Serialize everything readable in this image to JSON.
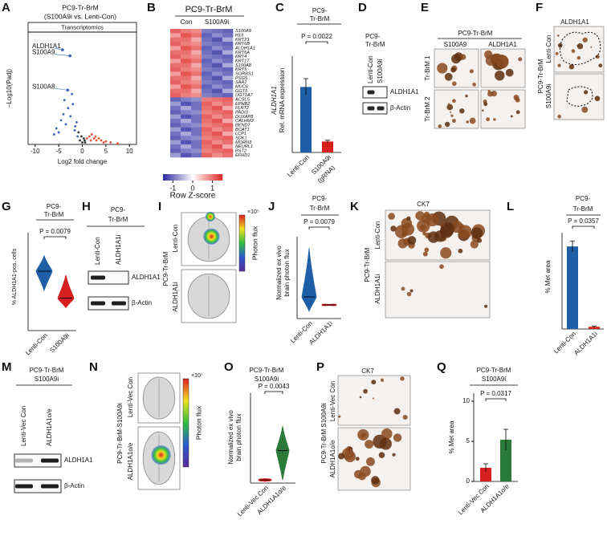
{
  "panels": {
    "A": {
      "letter": "A",
      "title": [
        "PC9-Tr-BrM",
        "(S100A9i vs. Lenti-Con)"
      ],
      "subtitle": "Transcriptomics",
      "ylabel": "–Log10(Padj)",
      "xlabel": "Log2 fold change",
      "xlim": [
        -11.5,
        11.5
      ],
      "xticks": [
        -10,
        -5,
        0,
        5,
        10
      ],
      "ylim": [
        0,
        55
      ],
      "points": {
        "x": [
          -6,
          -5.5,
          -5,
          -4.5,
          -4,
          -3.5,
          -3,
          -2.5,
          -2,
          -1.5,
          -1,
          -0.5,
          0,
          0.5,
          1,
          1.5,
          2,
          2.5,
          3,
          3.5,
          4,
          5,
          6,
          7.5,
          -3.8,
          -2.2,
          -1.2,
          0.3,
          -0.8,
          1.8,
          -0.2,
          0.6,
          -1.6,
          2.8,
          4.5
        ],
        "y": [
          5,
          8,
          6,
          12,
          15,
          10,
          18,
          14,
          20,
          9,
          4,
          2,
          1,
          2,
          3,
          4,
          5,
          3,
          2,
          3,
          2,
          1.5,
          1,
          0.5,
          22,
          25,
          11,
          3,
          6,
          2,
          4,
          1,
          7,
          4,
          1
        ]
      },
      "highlights": [
        {
          "label": "ALDH1A1",
          "x": -4.2,
          "y": 47
        },
        {
          "label": "S100A9",
          "x": -2.6,
          "y": 44
        },
        {
          "label": "S100A8",
          "x": -3.1,
          "y": 27
        }
      ],
      "colors": {
        "down": "#3a5fb0",
        "up": "#e2553a",
        "ns": "#333333",
        "label": "#2a6fb5"
      }
    },
    "B": {
      "letter": "B",
      "title": "PC9-Tr-BrM",
      "groups": [
        "Con",
        "S100A9i"
      ],
      "genes": [
        "S100A9",
        "H19",
        "KRT23",
        "KRT6B",
        "ALDH1A1",
        "KRT6A",
        "KRT4",
        "KRT17",
        "S100A8",
        "KRT5",
        "SORBS1",
        "PSG5",
        "SAA1",
        "MUC6",
        "GGT5",
        "UGT1A7",
        "ACSL5",
        "EPHB2",
        "FLRT2",
        "PADI3",
        "DUXAP8",
        "CALHM3",
        "BEND7",
        "BCAT1",
        "LCP1",
        "SDK1",
        "MORN3",
        "NEURL1",
        "BST2",
        "EFHD1"
      ],
      "highlight_gene": "ALDH1A1",
      "highlight_color": "#e02020",
      "matrix": [
        [
          1.1,
          0.9,
          0.8,
          -0.9,
          -1.0,
          -1.1
        ],
        [
          0.7,
          1.2,
          1.0,
          -1.1,
          -0.8,
          -1.0
        ],
        [
          1.0,
          1.0,
          0.6,
          -1.0,
          -1.2,
          -0.6
        ],
        [
          1.1,
          0.9,
          0.8,
          -0.9,
          -1.0,
          -1.1
        ],
        [
          0.7,
          1.2,
          1.0,
          -1.1,
          -0.8,
          -1.0
        ],
        [
          1.0,
          1.0,
          0.6,
          -1.0,
          -1.2,
          -0.6
        ],
        [
          1.1,
          0.9,
          0.8,
          -0.9,
          -1.0,
          -1.1
        ],
        [
          0.7,
          1.2,
          1.0,
          -1.1,
          -0.8,
          -1.0
        ],
        [
          1.0,
          1.0,
          0.6,
          -1.0,
          -1.2,
          -0.6
        ],
        [
          1.1,
          0.9,
          0.8,
          -0.9,
          -1.0,
          -1.1
        ],
        [
          0.7,
          1.2,
          1.0,
          -1.1,
          -0.8,
          -1.0
        ],
        [
          1.0,
          1.0,
          0.6,
          -1.0,
          -1.2,
          -0.6
        ],
        [
          1.1,
          0.9,
          0.8,
          -0.9,
          -1.0,
          -1.1
        ],
        [
          0.7,
          1.2,
          1.0,
          -1.1,
          -0.8,
          -1.0
        ],
        [
          1.0,
          1.0,
          0.6,
          -1.0,
          -1.2,
          -0.6
        ],
        [
          1.1,
          0.9,
          0.8,
          -0.9,
          -1.0,
          -1.1
        ],
        [
          -1.1,
          -0.9,
          -0.8,
          0.9,
          1.0,
          1.1
        ],
        [
          -0.7,
          -1.2,
          -1.0,
          1.1,
          0.8,
          1.0
        ],
        [
          -1.0,
          -0.6,
          -1.0,
          1.0,
          1.2,
          0.6
        ],
        [
          -1.1,
          -0.9,
          -0.8,
          0.9,
          1.0,
          1.1
        ],
        [
          -0.7,
          -1.2,
          -1.0,
          1.1,
          0.8,
          1.0
        ],
        [
          -1.0,
          -0.6,
          -1.0,
          1.0,
          1.2,
          0.6
        ],
        [
          -1.1,
          -0.9,
          -0.8,
          0.9,
          1.0,
          1.1
        ],
        [
          -0.7,
          -1.2,
          -1.0,
          1.1,
          0.8,
          1.0
        ],
        [
          -1.0,
          -0.6,
          -1.0,
          1.0,
          1.2,
          0.6
        ],
        [
          -1.1,
          -0.9,
          -0.8,
          0.9,
          1.0,
          1.1
        ],
        [
          -0.7,
          -1.2,
          -1.0,
          1.1,
          0.8,
          1.0
        ],
        [
          -1.0,
          -0.6,
          -1.0,
          1.0,
          1.2,
          0.6
        ],
        [
          -1.1,
          -0.9,
          -0.8,
          0.9,
          1.0,
          1.1
        ],
        [
          -0.7,
          -1.2,
          -1.0,
          1.1,
          0.8,
          1.0
        ]
      ],
      "colorbar": {
        "label": "Row Z-score",
        "lim": [
          -1.5,
          1.5
        ],
        "ticks": [
          -1,
          0,
          1
        ],
        "colors": [
          "#2a2aa0",
          "#ffffff",
          "#e02828"
        ]
      }
    },
    "C": {
      "letter": "C",
      "title": [
        "PC9-",
        "Tr-BrM"
      ],
      "ylabel": [
        "ALDH1A1",
        "Rel. mRNA expression"
      ],
      "categories": [
        "Lenti-Con",
        "S100A9i"
      ],
      "category_note": "(gRNA)",
      "values": [
        1.02,
        0.17
      ],
      "errors": [
        0.13,
        0.02
      ],
      "colors": [
        "#1f5fa8",
        "#d62020"
      ],
      "ylim": [
        0,
        1.5
      ],
      "pvalue": "P = 0.0022"
    },
    "D": {
      "letter": "D",
      "title": [
        "PC9-",
        "Tr-BrM"
      ],
      "lanes": [
        "Lenti-Con",
        "S100A9i"
      ],
      "bands": [
        "ALDH1A1",
        "β-Actin"
      ]
    },
    "E": {
      "letter": "E",
      "title": "PC9-Tr-BrM",
      "columns": [
        "S100A9",
        "ALDH1A1"
      ],
      "rows": [
        "Tr-BrM 1",
        "Tr-BrM 2"
      ]
    },
    "F": {
      "letter": "F",
      "title": "ALDH1A1",
      "side": "PC9-Tr-BrM",
      "rows": [
        "Lenti-Con",
        "S100A9i"
      ]
    },
    "G": {
      "letter": "G",
      "title": [
        "PC9-",
        "Tr-BrM"
      ],
      "ylabel": "% ALDH1A1-pos. cells",
      "categories": [
        "Lenti-Con",
        "S100A9i"
      ],
      "violins": [
        {
          "min": 40,
          "median": 60,
          "max": 76
        },
        {
          "min": 22,
          "median": 32,
          "max": 56
        }
      ],
      "colors": [
        "#1f5fa8",
        "#d62020"
      ],
      "ylim": [
        0,
        100
      ],
      "pvalue": "P = 0.0079"
    },
    "H": {
      "letter": "H",
      "title": [
        "PC9-",
        "Tr-BrM"
      ],
      "lanes": [
        "Lenti-Con",
        "ALDH1A1i"
      ],
      "bands": [
        "ALDH1A1",
        "β-Actin"
      ]
    },
    "I": {
      "letter": "I",
      "side": "PC9-Tr-BrM",
      "rows": [
        "Lenti-Con",
        "ALDH1A1i"
      ],
      "colorbar_label": "Photon flux",
      "multiplier": "×10⁵"
    },
    "J": {
      "letter": "J",
      "title": [
        "PC9-",
        "Tr-BrM"
      ],
      "ylabel": [
        "Normalized ex vivo",
        "brain photon flux"
      ],
      "categories": [
        "Lenti-Con",
        "ALDH1A1i"
      ],
      "violins": [
        {
          "min": -0.1,
          "median": 0.15,
          "max": 1.0
        },
        {
          "min": 0,
          "median": 0.01,
          "max": 0.02
        }
      ],
      "colors": [
        "#1f5fa8",
        "#d62020"
      ],
      "ylim": [
        -0.2,
        1.2
      ],
      "pvalue": "P = 0.0079"
    },
    "K": {
      "letter": "K",
      "title": "CK7",
      "side": "PC9-Tr-BrM",
      "rows": [
        "Lenti-Con",
        "ALDH1A1i"
      ]
    },
    "L": {
      "letter": "L",
      "title": [
        "PC9-",
        "Tr-BrM"
      ],
      "ylabel": "% Met area",
      "categories": [
        "Lenti-Con",
        "ALDH1A1i"
      ],
      "values": [
        30,
        0.8
      ],
      "errors": [
        2,
        0.3
      ],
      "colors": [
        "#1f5fa8",
        "#d62020"
      ],
      "ylim": [
        0,
        35
      ],
      "pvalue": "P = 0.0357"
    },
    "M": {
      "letter": "M",
      "title": [
        "PC9-Tr-BrM",
        "S100A9i"
      ],
      "lanes": [
        "Lenti-Vec Con",
        "ALDH1A1o/e"
      ],
      "bands": [
        "ALDH1A1",
        "β-Actin"
      ]
    },
    "N": {
      "letter": "N",
      "side": "PC9-Tr-BrM-S100A9i",
      "rows": [
        "Lenti-Vec Con",
        "ALDH1A1o/e"
      ],
      "colorbar_label": "Photon flux",
      "multiplier": "×10⁷"
    },
    "O": {
      "letter": "O",
      "title": [
        "PC9-Tr-BrM",
        "S100A9i"
      ],
      "ylabel": [
        "Normalized ex vivo",
        "brain photon flux"
      ],
      "categories": [
        "Lenti-Vec Con",
        "ALDH1A1o/e"
      ],
      "violins": [
        {
          "min": 0,
          "median": 0.02,
          "max": 0.04
        },
        {
          "min": 0.02,
          "median": 0.42,
          "max": 0.75
        }
      ],
      "colors": [
        "#d62020",
        "#2a7a3a"
      ],
      "ylim": [
        0,
        1.2
      ],
      "pvalue": "P = 0.0043"
    },
    "P": {
      "letter": "P",
      "title": "CK7",
      "side": "PC9-Tr-BrM S100A9i",
      "rows": [
        "Lenti-Vec Con",
        "ALDH1A1o/e"
      ]
    },
    "Q": {
      "letter": "Q",
      "title": [
        "PC9-Tr-BrM",
        "S100A9i"
      ],
      "ylabel": "% Met area",
      "categories": [
        "Lenti-Vec Con",
        "ALDH1A1o/e"
      ],
      "values": [
        1.7,
        5.2
      ],
      "errors": [
        0.5,
        1.3
      ],
      "colors": [
        "#d62020",
        "#2a7a3a"
      ],
      "ylim": [
        0,
        11
      ],
      "yticks": [
        0,
        5,
        10
      ],
      "pvalue": "P = 0.0317"
    }
  }
}
